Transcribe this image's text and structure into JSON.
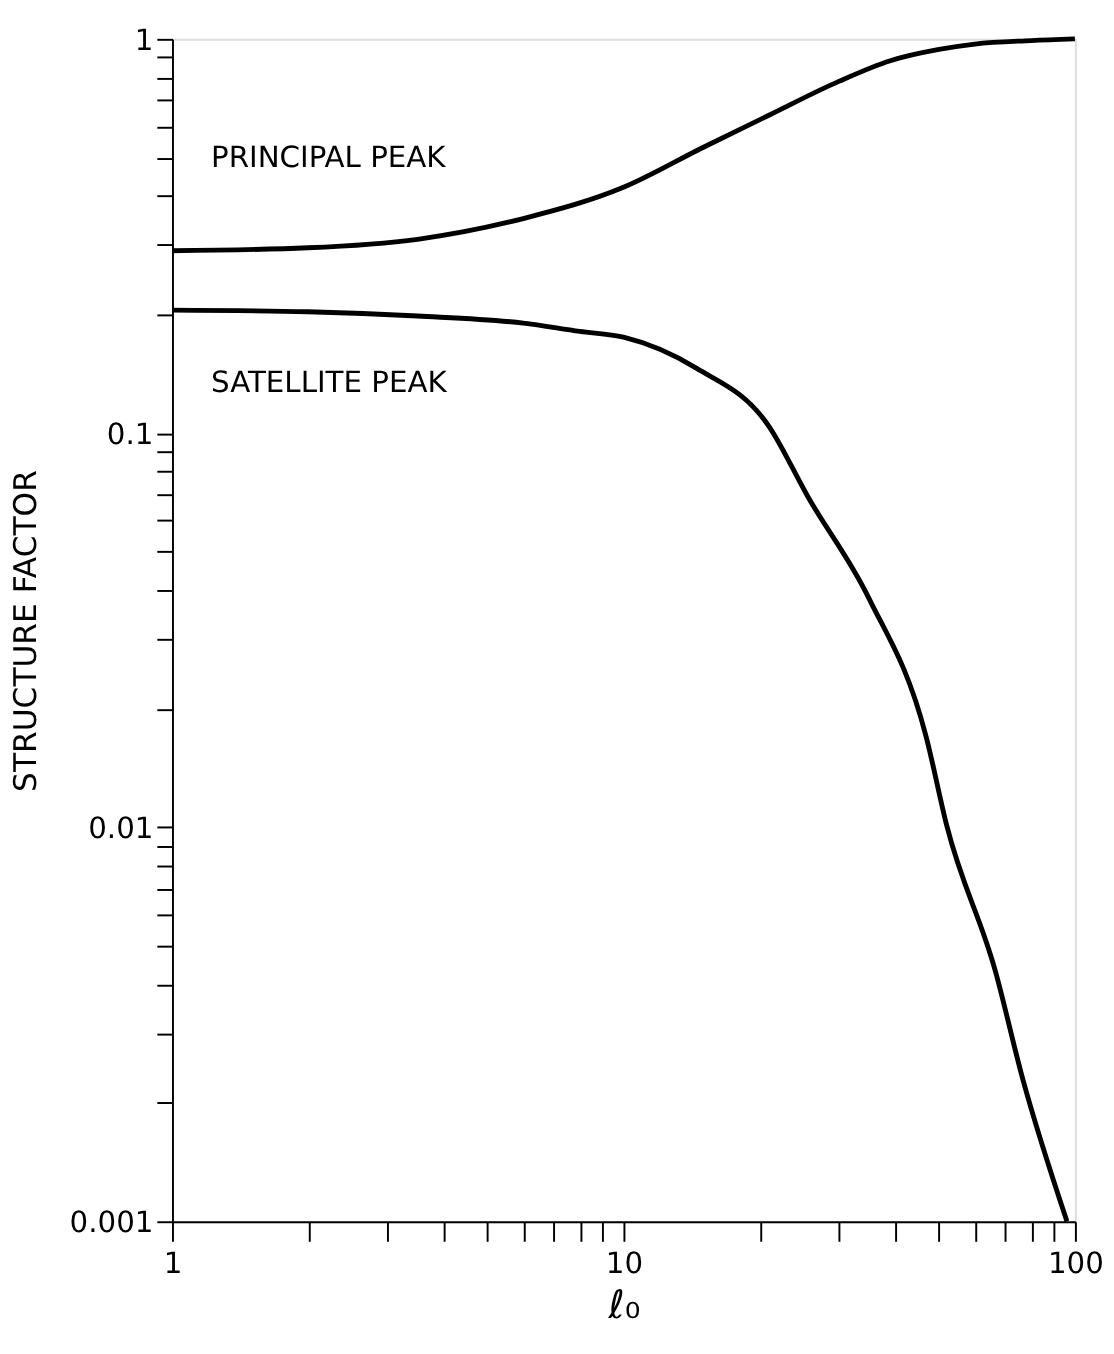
{
  "chart_data": {
    "type": "line",
    "xlabel": "ℓ₀",
    "ylabel": "STRUCTURE FACTOR",
    "log": "xy",
    "grid": false,
    "legend": false,
    "marker": "none",
    "line_style": "solid",
    "xlim": [
      1,
      100
    ],
    "ylim": [
      0.001,
      1
    ],
    "xticks": [
      1,
      {
        "value": 2,
        "label": null
      },
      {
        "value": 3,
        "label": null
      },
      {
        "value": 4,
        "label": null
      },
      {
        "value": 5,
        "label": null
      },
      {
        "value": 6,
        "label": null
      },
      {
        "value": 7,
        "label": null
      },
      {
        "value": 8,
        "label": null
      },
      {
        "value": 9,
        "label": null
      },
      10,
      {
        "value": 20,
        "label": null
      },
      {
        "value": 30,
        "label": null
      },
      {
        "value": 40,
        "label": null
      },
      {
        "value": 50,
        "label": null
      },
      {
        "value": 60,
        "label": null
      },
      {
        "value": 70,
        "label": null
      },
      {
        "value": 80,
        "label": null
      },
      {
        "value": 90,
        "label": null
      },
      100
    ],
    "yticks": [
      {
        "value": 0.001,
        "label": "0.001"
      },
      {
        "value": 0.002,
        "label": null
      },
      {
        "value": 0.003,
        "label": null
      },
      {
        "value": 0.004,
        "label": null
      },
      {
        "value": 0.005,
        "label": null
      },
      {
        "value": 0.006,
        "label": null
      },
      {
        "value": 0.007,
        "label": null
      },
      {
        "value": 0.008,
        "label": null
      },
      {
        "value": 0.009,
        "label": null
      },
      {
        "value": 0.01,
        "label": "0.01"
      },
      {
        "value": 0.02,
        "label": null
      },
      {
        "value": 0.03,
        "label": null
      },
      {
        "value": 0.04,
        "label": null
      },
      {
        "value": 0.05,
        "label": null
      },
      {
        "value": 0.06,
        "label": null
      },
      {
        "value": 0.07,
        "label": null
      },
      {
        "value": 0.08,
        "label": null
      },
      {
        "value": 0.09,
        "label": null
      },
      {
        "value": 0.1,
        "label": "0.1"
      },
      {
        "value": 0.2,
        "label": null
      },
      {
        "value": 0.3,
        "label": null
      },
      {
        "value": 0.4,
        "label": null
      },
      {
        "value": 0.5,
        "label": null
      },
      {
        "value": 0.6,
        "label": null
      },
      {
        "value": 0.7,
        "label": null
      },
      {
        "value": 0.8,
        "label": null
      },
      {
        "value": 0.9,
        "label": null
      },
      {
        "value": 1,
        "label": "1"
      }
    ],
    "series": [
      {
        "name": "PRINCIPAL PEAK",
        "color": "#000000",
        "x": [
          1,
          2,
          3.5,
          6,
          10,
          15,
          21,
          30,
          39,
          50,
          60,
          80,
          100
        ],
        "values": [
          0.29,
          0.295,
          0.31,
          0.35,
          0.42,
          0.53,
          0.64,
          0.78,
          0.88,
          0.94,
          0.97,
          0.99,
          1.0
        ]
      },
      {
        "name": "SATELLITE PEAK",
        "color": "#000000",
        "x": [
          1,
          2,
          3.5,
          6,
          8,
          10,
          14.5,
          21,
          25.6,
          35,
          46.8,
          52,
          66.7,
          76.6,
          96
        ],
        "values": [
          0.205,
          0.203,
          0.198,
          0.19,
          0.181,
          0.175,
          0.146,
          0.104,
          0.069,
          0.038,
          0.017,
          0.0101,
          0.0043,
          0.0023,
          0.001
        ]
      }
    ]
  }
}
